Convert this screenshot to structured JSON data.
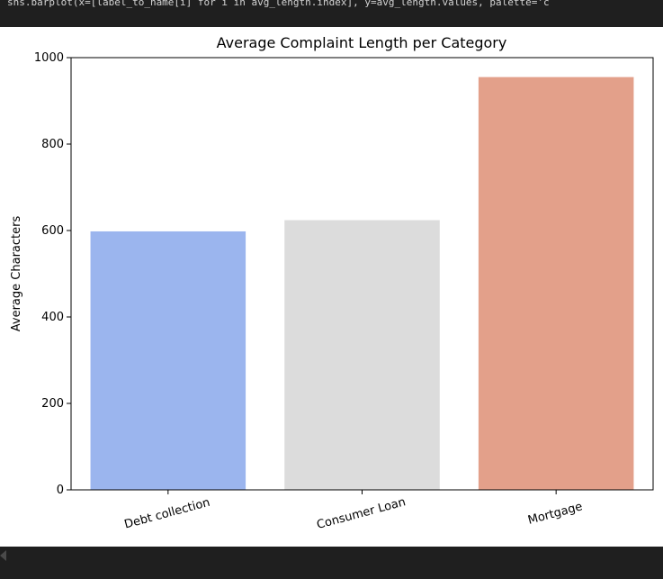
{
  "code": {
    "text": "sns.barplot(x=[label_to_name[i] for i in avg_length.index], y=avg_length.values, palette='c"
  },
  "icons": {
    "scroll_left": "triangle-left-icon"
  },
  "chart_data": {
    "type": "bar",
    "title": "Average Complaint Length per Category",
    "xlabel": "",
    "ylabel": "Average Characters",
    "categories": [
      "Debt collection",
      "Consumer Loan",
      "Mortgage"
    ],
    "values": [
      598,
      624,
      955
    ],
    "colors": [
      "#9bb5ee",
      "#dcdcdc",
      "#e3a08a"
    ],
    "ylim": [
      0,
      1000
    ],
    "yticks": [
      0,
      200,
      400,
      600,
      800,
      1000
    ],
    "ytick_labels": [
      "0",
      "200",
      "400",
      "600",
      "800",
      "1000"
    ],
    "grid": false,
    "legend": "none",
    "xtick_rotation_deg": -15
  }
}
